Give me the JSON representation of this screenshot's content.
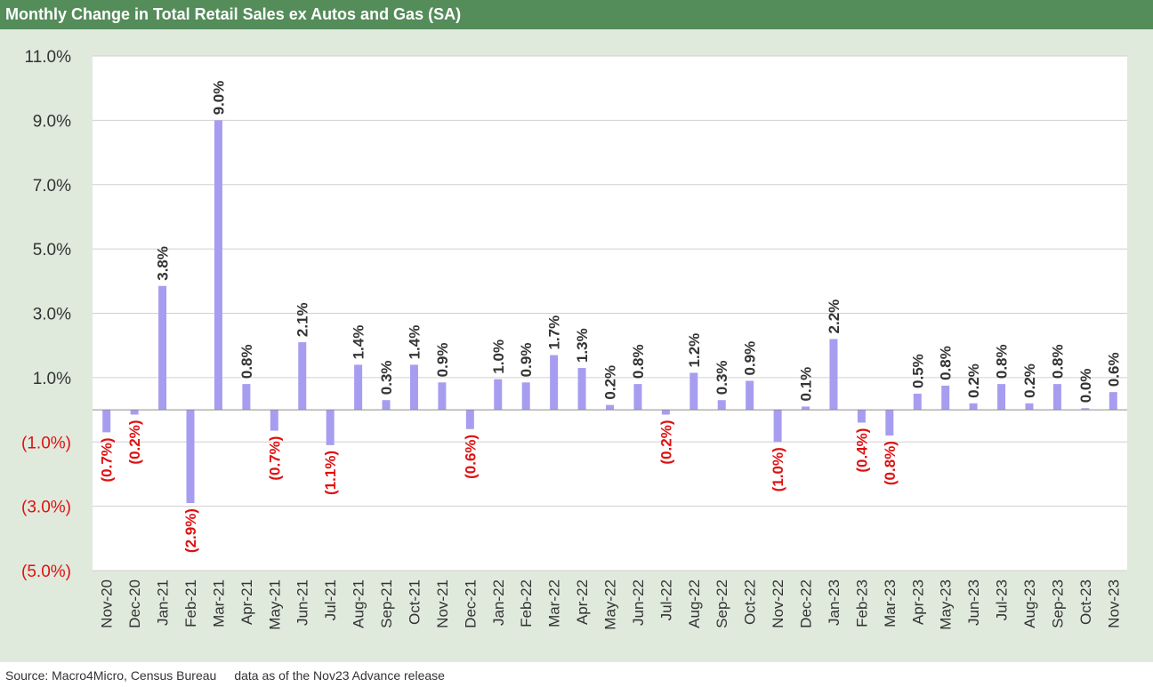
{
  "title": "Monthly Change in Total Retail Sales ex Autos and Gas (SA)",
  "footer": {
    "source": "Source: Macro4Micro, Census Bureau",
    "note": "data as of the Nov23 Advance release"
  },
  "colors": {
    "title_bar": "#548c5a",
    "panel_background": "#dfeadd",
    "bar": "#a79df0",
    "positive_label": "#333333",
    "negative_label": "#e01010"
  },
  "chart_data": {
    "type": "bar",
    "title": "Monthly Change in Total Retail Sales ex Autos and Gas (SA)",
    "xlabel": "",
    "ylabel": "",
    "ylim": [
      -5.0,
      11.0
    ],
    "grid": true,
    "legend": "none",
    "yticks": [
      11.0,
      9.0,
      7.0,
      5.0,
      3.0,
      1.0,
      -1.0,
      -3.0,
      -5.0
    ],
    "ytick_labels": [
      "11.0%",
      "9.0%",
      "7.0%",
      "5.0%",
      "3.0%",
      "1.0%",
      "(1.0%)",
      "(3.0%)",
      "(5.0%)"
    ],
    "categories": [
      "Nov-20",
      "Dec-20",
      "Jan-21",
      "Feb-21",
      "Mar-21",
      "Apr-21",
      "May-21",
      "Jun-21",
      "Jul-21",
      "Aug-21",
      "Sep-21",
      "Oct-21",
      "Nov-21",
      "Dec-21",
      "Jan-22",
      "Feb-22",
      "Mar-22",
      "Apr-22",
      "May-22",
      "Jun-22",
      "Jul-22",
      "Aug-22",
      "Sep-22",
      "Oct-22",
      "Nov-22",
      "Dec-22",
      "Jan-23",
      "Feb-23",
      "Mar-23",
      "Apr-23",
      "May-23",
      "Jun-23",
      "Jul-23",
      "Aug-23",
      "Sep-23",
      "Oct-23",
      "Nov-23"
    ],
    "values": [
      -0.7,
      -0.15,
      3.85,
      -2.9,
      9.0,
      0.8,
      -0.65,
      2.1,
      -1.1,
      1.4,
      0.3,
      1.4,
      0.85,
      -0.6,
      0.95,
      0.85,
      1.7,
      1.3,
      0.15,
      0.8,
      -0.15,
      1.15,
      0.3,
      0.9,
      -1.0,
      0.1,
      2.2,
      -0.4,
      -0.8,
      0.5,
      0.75,
      0.2,
      0.8,
      0.2,
      0.8,
      0.05,
      0.55
    ],
    "data_labels": [
      "(0.7%)",
      "(0.2%)",
      "3.8%",
      "(2.9%)",
      "9.0%",
      "0.8%",
      "(0.7%)",
      "2.1%",
      "(1.1%)",
      "1.4%",
      "0.3%",
      "1.4%",
      "0.9%",
      "(0.6%)",
      "1.0%",
      "0.9%",
      "1.7%",
      "1.3%",
      "0.2%",
      "0.8%",
      "(0.2%)",
      "1.2%",
      "0.3%",
      "0.9%",
      "(1.0%)",
      "0.1%",
      "2.2%",
      "(0.4%)",
      "(0.8%)",
      "0.5%",
      "0.8%",
      "0.2%",
      "0.8%",
      "0.2%",
      "0.8%",
      "0.0%",
      "0.6%"
    ]
  }
}
